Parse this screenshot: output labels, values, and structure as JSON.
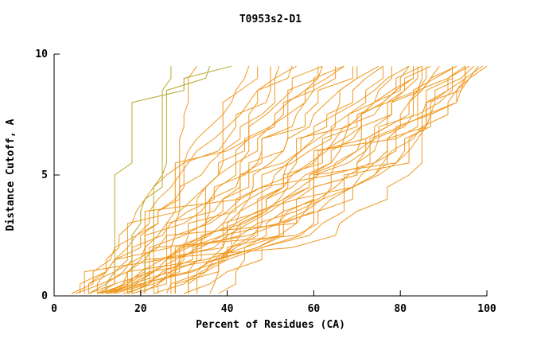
{
  "title": "T0953s2-D1",
  "colors": {
    "orange": "#ef9415",
    "olive": "#b0a11c",
    "axis": "#000000",
    "background": "#ffffff"
  },
  "chart_data": {
    "type": "line",
    "title": "T0953s2-D1",
    "xlabel": "Percent of Residues (CA)",
    "ylabel": "Distance Cutoff, A",
    "xlim": [
      0,
      100
    ],
    "ylim": [
      0,
      10
    ],
    "x_ticks": [
      0,
      20,
      40,
      60,
      80,
      100
    ],
    "y_ticks": [
      0,
      5,
      10
    ],
    "grid": false,
    "legend": "none",
    "anchor_cutoffs": [
      0,
      2.5,
      5,
      7.5,
      9.5
    ],
    "series": [
      {
        "color": "orange",
        "x_at_y": [
          5,
          18,
          30,
          42,
          52
        ]
      },
      {
        "color": "orange",
        "x_at_y": [
          6,
          20,
          34,
          48,
          58
        ]
      },
      {
        "color": "orange",
        "x_at_y": [
          7,
          22,
          38,
          52,
          62
        ]
      },
      {
        "color": "orange",
        "x_at_y": [
          8,
          25,
          42,
          56,
          66
        ]
      },
      {
        "color": "orange",
        "x_at_y": [
          9,
          28,
          46,
          60,
          70
        ]
      },
      {
        "color": "orange",
        "x_at_y": [
          10,
          30,
          50,
          64,
          74
        ]
      },
      {
        "color": "orange",
        "x_at_y": [
          11,
          33,
          54,
          68,
          78
        ]
      },
      {
        "color": "orange",
        "x_at_y": [
          12,
          36,
          57,
          71,
          81
        ]
      },
      {
        "color": "orange",
        "x_at_y": [
          13,
          38,
          60,
          74,
          84
        ]
      },
      {
        "color": "orange",
        "x_at_y": [
          14,
          41,
          63,
          77,
          87
        ]
      },
      {
        "color": "orange",
        "x_at_y": [
          15,
          44,
          66,
          80,
          90
        ]
      },
      {
        "color": "orange",
        "x_at_y": [
          16,
          46,
          68,
          82,
          92
        ]
      },
      {
        "color": "orange",
        "x_at_y": [
          17,
          48,
          70,
          84,
          94
        ]
      },
      {
        "color": "orange",
        "x_at_y": [
          18,
          50,
          72,
          86,
          96
        ]
      },
      {
        "color": "orange",
        "x_at_y": [
          20,
          52,
          74,
          88,
          98
        ]
      },
      {
        "color": "orange",
        "x_at_y": [
          22,
          55,
          76,
          90,
          100
        ]
      },
      {
        "color": "orange",
        "x_at_y": [
          8,
          16,
          26,
          38,
          50
        ]
      },
      {
        "color": "orange",
        "x_at_y": [
          10,
          20,
          32,
          44,
          56
        ]
      },
      {
        "color": "orange",
        "x_at_y": [
          12,
          24,
          36,
          50,
          62
        ]
      },
      {
        "color": "orange",
        "x_at_y": [
          14,
          28,
          40,
          54,
          68
        ]
      },
      {
        "color": "orange",
        "x_at_y": [
          16,
          32,
          46,
          60,
          74
        ]
      },
      {
        "color": "orange",
        "x_at_y": [
          18,
          36,
          52,
          66,
          80
        ]
      },
      {
        "color": "orange",
        "x_at_y": [
          20,
          40,
          58,
          72,
          86
        ]
      },
      {
        "color": "orange",
        "x_at_y": [
          24,
          46,
          64,
          78,
          92
        ]
      },
      {
        "color": "orange",
        "x_at_y": [
          26,
          50,
          68,
          82,
          95
        ]
      },
      {
        "color": "orange",
        "x_at_y": [
          28,
          54,
          72,
          86,
          97
        ]
      },
      {
        "color": "orange",
        "x_at_y": [
          30,
          58,
          76,
          89,
          99
        ]
      },
      {
        "color": "orange",
        "x_at_y": [
          6,
          30,
          55,
          72,
          85
        ]
      },
      {
        "color": "orange",
        "x_at_y": [
          7,
          38,
          62,
          78,
          88
        ]
      },
      {
        "color": "orange",
        "x_at_y": [
          8,
          46,
          68,
          82,
          91
        ]
      },
      {
        "color": "orange",
        "x_at_y": [
          9,
          52,
          73,
          86,
          93
        ]
      },
      {
        "color": "orange",
        "x_at_y": [
          10,
          58,
          78,
          88,
          95
        ]
      },
      {
        "color": "orange",
        "x_at_y": [
          12,
          64,
          82,
          91,
          96
        ]
      },
      {
        "color": "olive",
        "x_at_y": [
          21,
          22,
          23,
          24,
          26
        ]
      },
      {
        "color": "orange",
        "x_at_y": [
          26,
          27,
          28,
          29,
          31
        ]
      },
      {
        "color": "olive",
        "x_at_y": [
          13,
          15,
          16,
          18,
          40
        ]
      },
      {
        "color": "orange",
        "x_at_y": [
          32,
          36,
          40,
          46,
          56
        ]
      },
      {
        "color": "orange",
        "x_at_y": [
          34,
          40,
          48,
          56,
          66
        ]
      },
      {
        "color": "orange",
        "x_at_y": [
          36,
          44,
          54,
          64,
          76
        ]
      },
      {
        "color": "orange",
        "x_at_y": [
          38,
          48,
          60,
          72,
          84
        ]
      },
      {
        "color": "orange",
        "x_at_y": [
          25,
          33,
          42,
          52,
          63
        ]
      },
      {
        "color": "orange",
        "x_at_y": [
          30,
          42,
          55,
          70,
          88
        ]
      },
      {
        "color": "olive",
        "x_at_y": [
          17,
          20,
          24,
          30,
          36
        ]
      },
      {
        "color": "orange",
        "x_at_y": [
          28,
          32,
          36,
          40,
          44
        ]
      }
    ]
  }
}
